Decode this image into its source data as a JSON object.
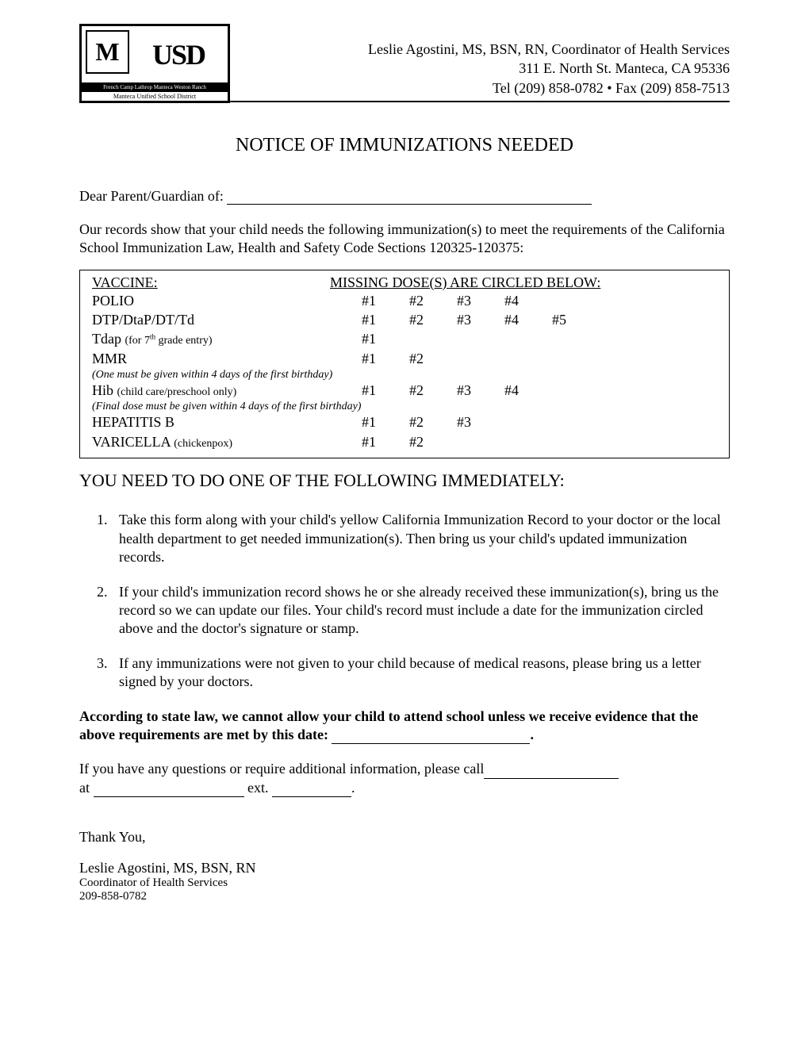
{
  "header": {
    "logo_cities": "French Camp  Lathrop  Manteca  Weston Ranch",
    "logo_district": "Manteca Unified School District",
    "coordinator": "Leslie Agostini, MS, BSN, RN, Coordinator of Health Services",
    "address": "311 E. North St.  Manteca, CA 95336",
    "phone": "Tel (209) 858-0782 • Fax (209) 858-7513"
  },
  "title": "NOTICE OF IMMUNIZATIONS NEEDED",
  "salutation": "Dear Parent/Guardian of:",
  "intro": "Our records show that your child needs the following immunization(s) to meet the requirements of the California School Immunization Law, Health and Safety Code Sections 120325-120375:",
  "vaccine_table": {
    "header_left": "VACCINE:",
    "header_right": "MISSING DOSE(S) ARE CIRCLED BELOW:",
    "rows": [
      {
        "name": "POLIO",
        "doses": [
          "#1",
          "#2",
          "#3",
          "#4"
        ]
      },
      {
        "name": "DTP/DtaP/DT/Td",
        "doses": [
          "#1",
          "#2",
          "#3",
          "#4",
          "#5"
        ]
      },
      {
        "name": "Tdap",
        "note_inline": "(for 7th grade entry)",
        "doses": [
          "#1"
        ]
      },
      {
        "name": "MMR",
        "doses": [
          "#1",
          "#2"
        ],
        "note_below": "(One must be given within 4 days of the first birthday)"
      },
      {
        "name": "Hib",
        "note_inline": "(child care/preschool only)",
        "doses": [
          "#1",
          "#2",
          "#3",
          "#4"
        ],
        "note_below": "(Final dose must be given within 4 days of the first birthday)"
      },
      {
        "name": "HEPATITIS B",
        "doses": [
          "#1",
          "#2",
          "#3"
        ]
      },
      {
        "name": "VARICELLA",
        "note_inline": "(chickenpox)",
        "doses": [
          "#1",
          "#2"
        ]
      }
    ]
  },
  "section_heading": "YOU NEED TO DO ONE OF THE FOLLOWING IMMEDIATELY:",
  "instructions": [
    "Take this form along with your child's yellow California Immunization Record to your doctor or the local health department to get needed immunization(s). Then bring us your child's updated immunization records.",
    "If your child's immunization record shows he or she already received these immunization(s), bring us the record so we can update our files. Your child's record must include a date for the immunization circled above and the doctor's signature or stamp.",
    "If any immunizations were not given to your child because of medical reasons, please bring us a letter signed by your doctors."
  ],
  "warning_part1": "According to state law, we cannot allow your child to attend school unless we receive evidence that the above requirements are met by this date:",
  "warning_period": ".",
  "contact_part1": "If you have any questions or require additional information, please call",
  "contact_part2": "at",
  "contact_part3": "ext.",
  "contact_period": ".",
  "closing": "Thank You,",
  "signature": {
    "name": "Leslie Agostini, MS, BSN, RN",
    "title": "Coordinator of Health Services",
    "phone": "209-858-0782"
  }
}
